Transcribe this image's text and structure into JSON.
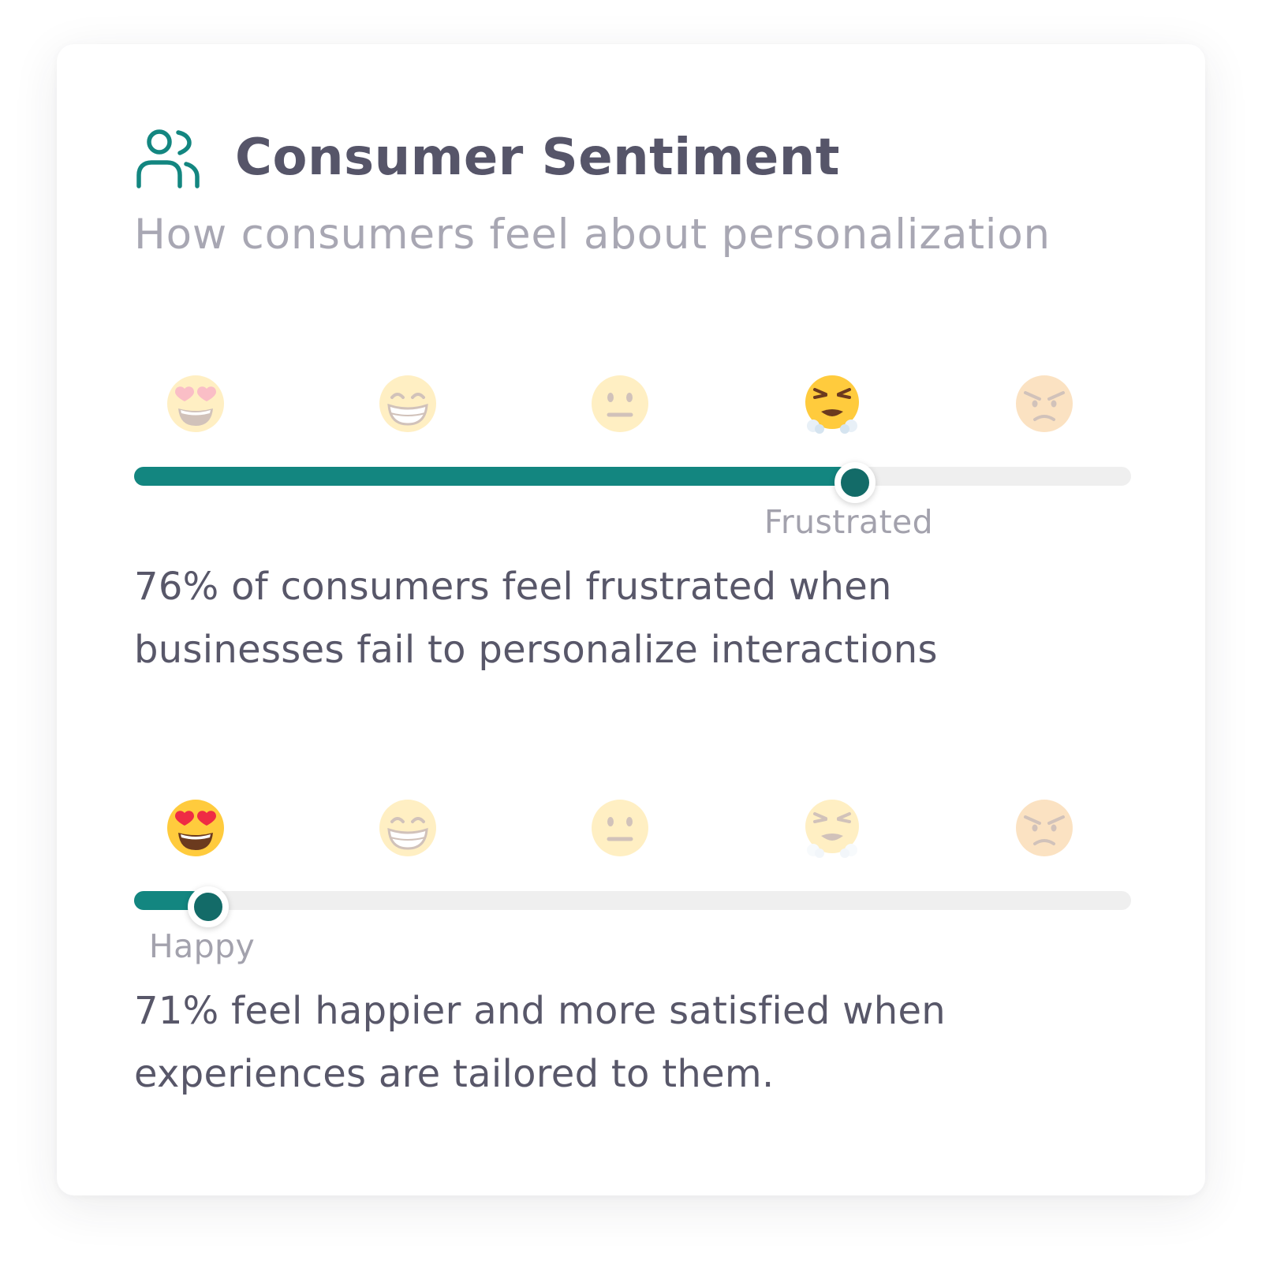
{
  "card": {
    "title": "Consumer Sentiment",
    "subtitle": "How consumers feel about personalization",
    "icon": "users-icon",
    "accent_color": "#138680",
    "thumb_color": "#136b68"
  },
  "emoji_scale": [
    "heart-eyes-emoji",
    "grinning-emoji",
    "neutral-emoji",
    "steam-nose-emoji",
    "angry-emoji"
  ],
  "sliders": [
    {
      "active_emoji_index": 3,
      "level": 0.717,
      "level_label": "Frustrated",
      "stat_line1": "76% of consumers feel frustrated when",
      "stat_line2": "businesses fail to personalize interactions"
    },
    {
      "active_emoji_index": 0,
      "level": 0.068,
      "level_label": "Happy",
      "stat_line1": "71% feel happier and more satisfied when",
      "stat_line2": "experiences are tailored to them."
    }
  ]
}
